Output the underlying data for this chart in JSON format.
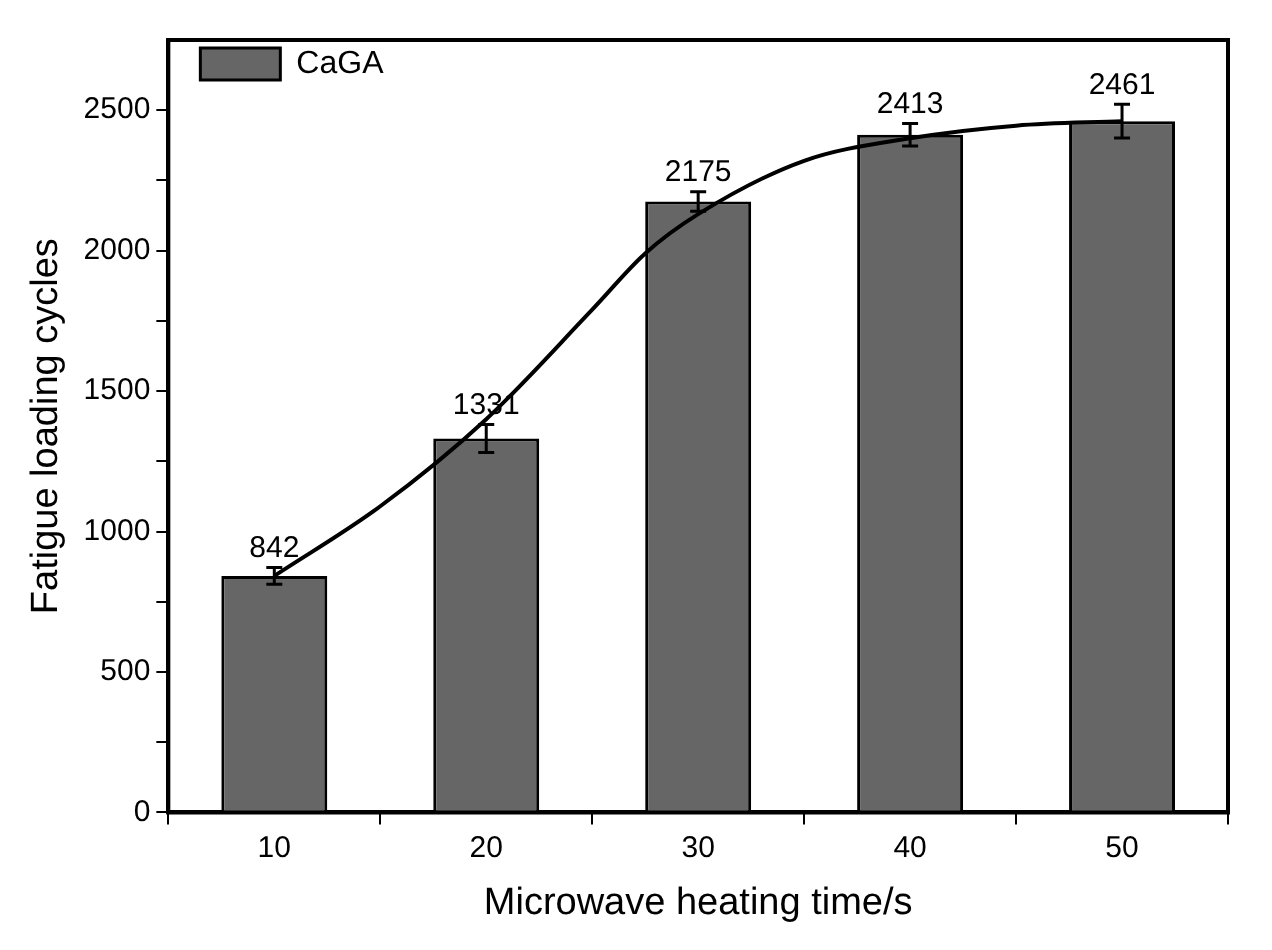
{
  "chart_data": {
    "type": "bar",
    "xlabel": "Microwave heating time/s",
    "ylabel": "Fatigue loading cycles",
    "x": [
      10,
      20,
      30,
      40,
      50
    ],
    "series": [
      {
        "name": "CaGA",
        "color": "#666666",
        "values": [
          842,
          1331,
          2175,
          2413,
          2461
        ],
        "value_labels": [
          "842",
          "1331",
          "2175",
          "2413",
          "2461"
        ],
        "errors": [
          30,
          50,
          35,
          40,
          60
        ]
      },
      {
        "type": "line",
        "color": "#000000",
        "x": [
          10,
          15,
          20,
          25,
          27.5,
          30,
          35,
          40,
          45,
          50
        ],
        "values": [
          842,
          1090,
          1400,
          1790,
          1990,
          2130,
          2320,
          2400,
          2445,
          2461
        ]
      }
    ],
    "legend": "top left",
    "grid": false,
    "marker": "none",
    "line_style": "solid",
    "xlim": [
      5,
      55
    ],
    "xticks": [
      10,
      20,
      30,
      40,
      50
    ],
    "ylim": [
      0,
      2750
    ],
    "yticks": [
      0,
      {
        "value": 250,
        "label": null
      },
      500,
      {
        "value": 750,
        "label": null
      },
      1000,
      {
        "value": 1250,
        "label": null
      },
      1500,
      {
        "value": 1750,
        "label": null
      },
      2000,
      {
        "value": 2250,
        "label": null
      },
      2500
    ]
  }
}
